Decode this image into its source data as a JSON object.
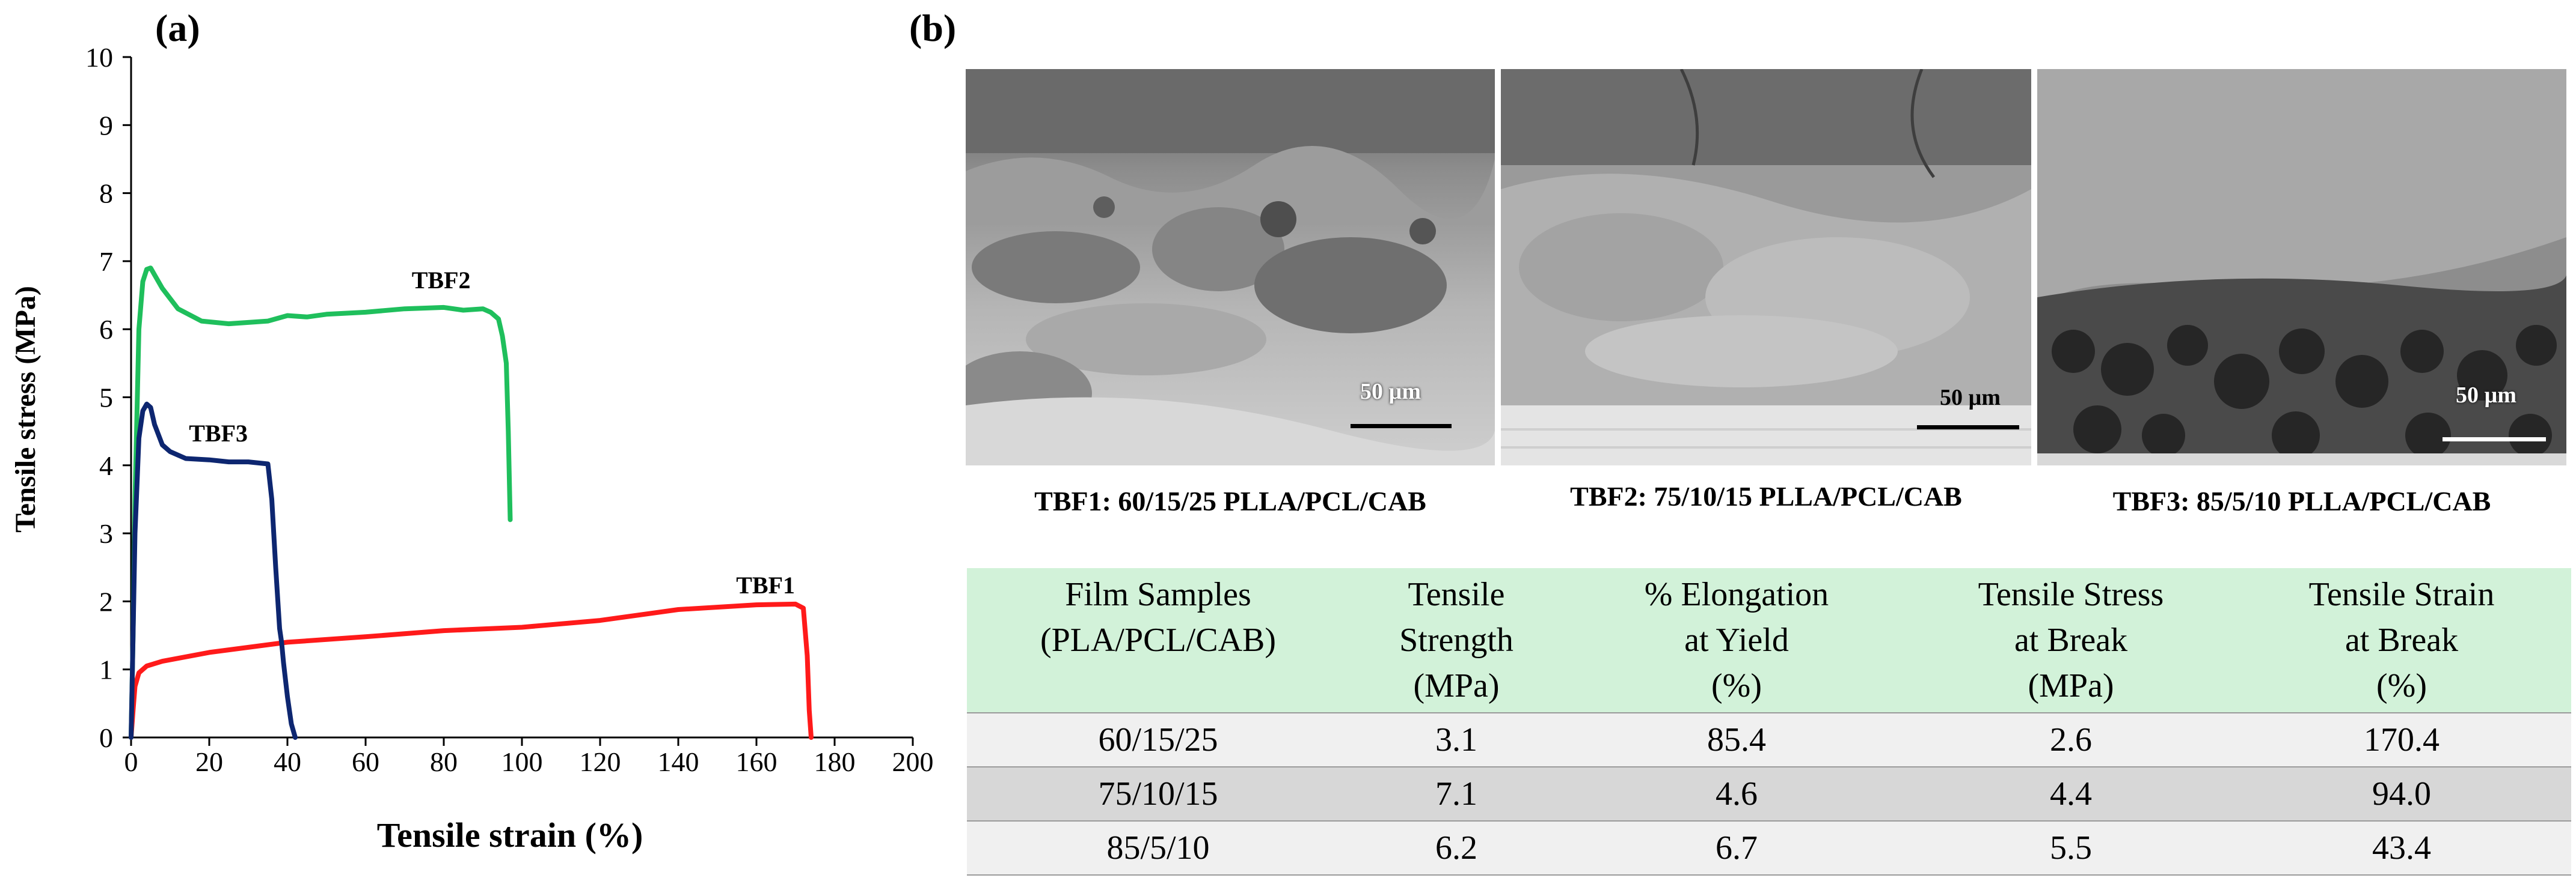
{
  "panels": {
    "a": "(a)",
    "b": "(b)"
  },
  "chart_data": {
    "type": "line",
    "xlabel": "Tensile strain (%)",
    "ylabel": "Tensile stress (MPa)",
    "xlim": [
      0,
      200
    ],
    "ylim": [
      0,
      10
    ],
    "xticks": [
      0,
      20,
      40,
      60,
      80,
      100,
      120,
      140,
      160,
      180,
      200
    ],
    "yticks": [
      0,
      1,
      2,
      3,
      4,
      5,
      6,
      7,
      8,
      9,
      10
    ],
    "grid": false,
    "series": [
      {
        "name": "TBF1",
        "color": "#ff1a1a",
        "x": [
          0,
          0.5,
          1,
          2,
          4,
          8,
          20,
          40,
          60,
          80,
          100,
          120,
          140,
          160,
          170,
          172,
          173,
          173.5,
          174
        ],
        "y": [
          0,
          0.4,
          0.75,
          0.95,
          1.05,
          1.12,
          1.25,
          1.4,
          1.48,
          1.57,
          1.62,
          1.72,
          1.88,
          1.95,
          1.96,
          1.9,
          1.2,
          0.4,
          0
        ]
      },
      {
        "name": "TBF2",
        "color": "#1fbf5c",
        "x": [
          0,
          0.5,
          1,
          2,
          3,
          4,
          5,
          6,
          8,
          12,
          18,
          25,
          30,
          35,
          40,
          45,
          50,
          60,
          70,
          80,
          85,
          90,
          92,
          94,
          95,
          96,
          96.5,
          97
        ],
        "y": [
          0,
          1.5,
          3.5,
          6.0,
          6.7,
          6.88,
          6.9,
          6.8,
          6.6,
          6.3,
          6.12,
          6.08,
          6.1,
          6.12,
          6.2,
          6.18,
          6.22,
          6.25,
          6.3,
          6.32,
          6.28,
          6.3,
          6.25,
          6.15,
          5.9,
          5.5,
          4.5,
          3.2
        ]
      },
      {
        "name": "TBF3",
        "color": "#0d2670",
        "x": [
          0,
          0.5,
          1,
          2,
          3,
          4,
          5,
          6,
          8,
          10,
          14,
          20,
          25,
          30,
          35,
          36,
          37,
          38,
          38.5,
          39,
          40,
          41,
          42
        ],
        "y": [
          0,
          1.5,
          3.0,
          4.4,
          4.8,
          4.9,
          4.85,
          4.6,
          4.3,
          4.2,
          4.1,
          4.08,
          4.05,
          4.05,
          4.02,
          3.5,
          2.5,
          1.6,
          1.4,
          1.1,
          0.6,
          0.2,
          0
        ]
      }
    ],
    "annotations": [
      "TBF1",
      "TBF2",
      "TBF3"
    ]
  },
  "sem_images": [
    {
      "caption": "TBF1: 60/15/25 PLLA/PCL/CAB",
      "scale_label": "50 µm"
    },
    {
      "caption": "TBF2: 75/10/15 PLLA/PCL/CAB",
      "scale_label": "50 µm"
    },
    {
      "caption": "TBF3: 85/5/10 PLLA/PCL/CAB",
      "scale_label": "50 µm"
    }
  ],
  "table": {
    "headers": [
      [
        "Film Samples",
        "(PLA/PCL/CAB)"
      ],
      [
        "Tensile",
        "Strength",
        "(MPa)"
      ],
      [
        "% Elongation",
        "at Yield",
        "(%)"
      ],
      [
        "Tensile Stress",
        "at Break",
        "(MPa)"
      ],
      [
        "Tensile Strain",
        "at Break",
        "(%)"
      ]
    ],
    "rows": [
      [
        "60/15/25",
        "3.1",
        "85.4",
        "2.6",
        "170.4"
      ],
      [
        "75/10/15",
        "7.1",
        "4.6",
        "4.4",
        "94.0"
      ],
      [
        "85/5/10",
        "6.2",
        "6.7",
        "5.5",
        "43.4"
      ]
    ]
  }
}
